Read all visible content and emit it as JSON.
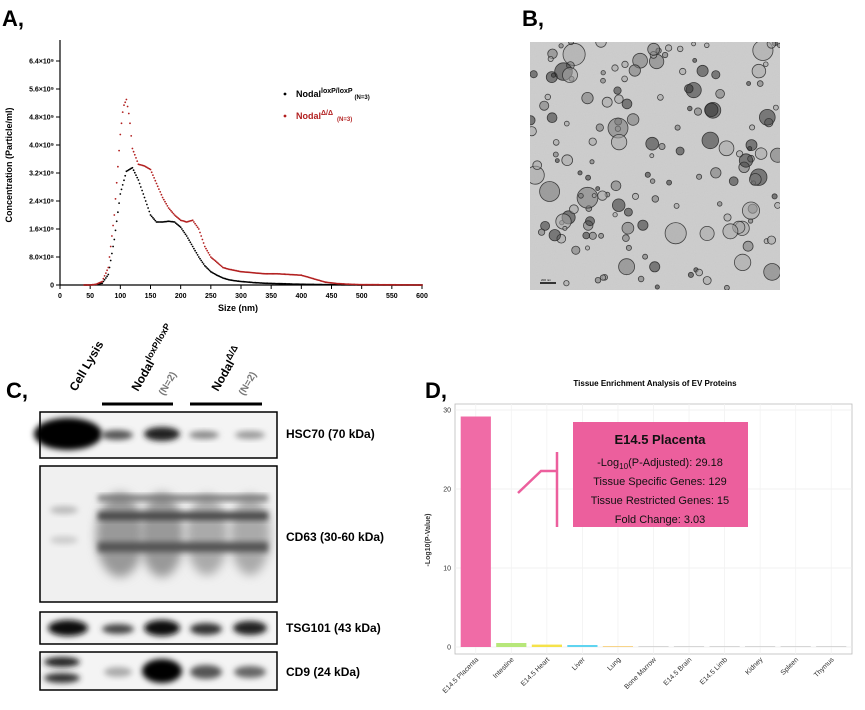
{
  "panels": {
    "a": {
      "letter": "A,"
    },
    "b": {
      "letter": "B,"
    },
    "c": {
      "letter": "C,"
    },
    "d": {
      "letter": "D,"
    }
  },
  "chart_data": [
    {
      "type": "scatter",
      "panel": "A",
      "xlabel": "Size (nm)",
      "ylabel": "Concentration (Particle/ml)",
      "xlim": [
        0,
        600
      ],
      "ylim": [
        0,
        7000000000.0
      ],
      "xticks": [
        0,
        50,
        100,
        150,
        200,
        250,
        300,
        350,
        400,
        450,
        500,
        550,
        600
      ],
      "yticks": [
        {
          "value": 0,
          "label": "0"
        },
        {
          "value": 800000000.0,
          "label": "8.0×10⁸"
        },
        {
          "value": 1600000000.0,
          "label": "1.6×10⁹"
        },
        {
          "value": 2400000000.0,
          "label": "2.4×10⁹"
        },
        {
          "value": 3200000000.0,
          "label": "3.2×10⁹"
        },
        {
          "value": 4000000000.0,
          "label": "4.0×10⁹"
        },
        {
          "value": 4800000000.0,
          "label": "4.8×10⁹"
        },
        {
          "value": 5600000000.0,
          "label": "5.6×10⁹"
        },
        {
          "value": 6400000000.0,
          "label": "6.4×10⁹"
        }
      ],
      "legend_position": "top-right",
      "series": [
        {
          "name_main": "Nodal",
          "name_sup": "loxP/loxP",
          "name_n": "(N=3)",
          "color": "#000000",
          "x": [
            0,
            50,
            60,
            70,
            80,
            90,
            100,
            110,
            120,
            130,
            140,
            150,
            160,
            170,
            180,
            190,
            200,
            210,
            220,
            230,
            240,
            250,
            260,
            270,
            280,
            290,
            300,
            320,
            340,
            360,
            380,
            400,
            450,
            500,
            600
          ],
          "y": [
            0,
            0,
            10000000.0,
            50000000.0,
            300000000.0,
            1300000000.0,
            2600000000.0,
            3250000000.0,
            3350000000.0,
            3000000000.0,
            2500000000.0,
            2000000000.0,
            1800000000.0,
            1800000000.0,
            1820000000.0,
            1800000000.0,
            1650000000.0,
            1400000000.0,
            1100000000.0,
            800000000.0,
            550000000.0,
            380000000.0,
            280000000.0,
            200000000.0,
            150000000.0,
            120000000.0,
            100000000.0,
            70000000.0,
            50000000.0,
            40000000.0,
            30000000.0,
            20000000.0,
            10000000.0,
            0,
            0
          ]
        },
        {
          "name_main": "Nodal",
          "name_sup": "Δ/Δ",
          "name_n": "(N=3)",
          "color": "#b21f1f",
          "x": [
            0,
            50,
            60,
            70,
            80,
            90,
            100,
            105,
            110,
            115,
            120,
            130,
            140,
            150,
            160,
            170,
            180,
            190,
            200,
            210,
            220,
            230,
            240,
            250,
            260,
            270,
            280,
            300,
            320,
            340,
            360,
            380,
            400,
            420,
            440,
            460,
            480,
            500,
            600
          ],
          "y": [
            0,
            0,
            20000000.0,
            100000000.0,
            500000000.0,
            2000000000.0,
            4300000000.0,
            5100000000.0,
            5300000000.0,
            4800000000.0,
            3900000000.0,
            3450000000.0,
            3400000000.0,
            3300000000.0,
            2900000000.0,
            2500000000.0,
            2200000000.0,
            2000000000.0,
            1850000000.0,
            1800000000.0,
            1850000000.0,
            1600000000.0,
            1100000000.0,
            800000000.0,
            650000000.0,
            500000000.0,
            450000000.0,
            380000000.0,
            350000000.0,
            320000000.0,
            320000000.0,
            300000000.0,
            280000000.0,
            180000000.0,
            80000000.0,
            40000000.0,
            20000000.0,
            10000000.0,
            0
          ]
        }
      ]
    },
    {
      "type": "bar",
      "panel": "D",
      "title": "Tissue Enrichment Analysis of EV Proteins",
      "ylabel": "-Log10(P-Value)",
      "ylim": [
        0,
        30
      ],
      "yticks": [
        0,
        10,
        20,
        30
      ],
      "categories": [
        "E14.5 Placenta",
        "Intestine",
        "E14.5 Heart",
        "Liver",
        "Lung",
        "Bone Marrow",
        "E14.5 Brain",
        "E14.5 Limb",
        "Kidney",
        "Spleen",
        "Thymus"
      ],
      "values": [
        29.18,
        0.5,
        0.3,
        0.25,
        0.1,
        0,
        0,
        0,
        0,
        0,
        0
      ],
      "colors": [
        "#f06ba6",
        "#b7e77a",
        "#f5e24a",
        "#5fd4f0",
        "#f5c96e",
        "#cccccc",
        "#cccccc",
        "#cccccc",
        "#cccccc",
        "#cccccc",
        "#cccccc"
      ],
      "annotation": {
        "title": "E14.5 Placenta",
        "line1_pre": "-Log",
        "line1_sub": "10",
        "line1_post": "(P-Adjusted): 29.18",
        "line2": "Tissue Specific Genes: 129",
        "line3": "Tissue Restricted Genes: 15",
        "line4": "Fold Change: 3.03",
        "color": "#ec5f9d"
      }
    }
  ],
  "blot": {
    "header_cell_lysis": "Cell Lysis",
    "header_flox_main": "Nodal",
    "header_flox_sup": "loxP/loxP",
    "header_flox_n": "(N=2)",
    "header_del_main": "Nodal",
    "header_del_sup": "Δ/Δ",
    "header_del_n": "(N=2)",
    "bands": [
      {
        "label": "HSC70 (70 kDa)"
      },
      {
        "label": "CD63 (30-60 kDa)"
      },
      {
        "label": "TSG101 (43 kDa)"
      },
      {
        "label": "CD9 (24 kDa)"
      }
    ]
  },
  "micrograph": {
    "scale_bar": "200 nm"
  }
}
